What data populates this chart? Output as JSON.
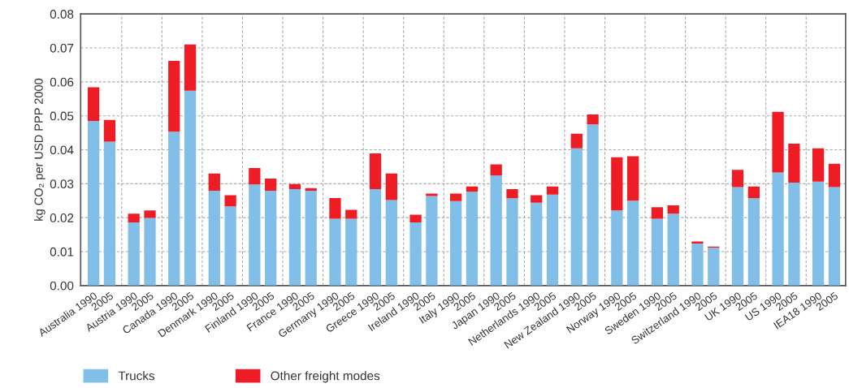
{
  "chart_data": {
    "type": "bar",
    "stacked": true,
    "ylabel": "kg CO₂ per USD PPP 2000",
    "categories": [
      "Australia 1990",
      "2005",
      "Austria 1990",
      "2005",
      "Canada 1990",
      "2005",
      "Denmark 1990",
      "2005",
      "Finland 1990",
      "2005",
      "France 1990",
      "2005",
      "Germany 1990",
      "2005",
      "Greece 1990",
      "2005",
      "Ireland 1990",
      "2005",
      "Italy 1990",
      "2005",
      "Japan 1990",
      "2005",
      "Netherlands 1990",
      "2005",
      "New Zealand 1990",
      "2005",
      "Norway 1990",
      "2005",
      "Sweden 1990",
      "2005",
      "Switzerland 1990",
      "2005",
      "UK 1990",
      "2005",
      "US 1990",
      "2005",
      "IEA18 1990",
      "2005"
    ],
    "series": [
      {
        "name": "Trucks",
        "color": "#82bfe8",
        "values": [
          0.0485,
          0.0424,
          0.0186,
          0.0199,
          0.0453,
          0.0574,
          0.0279,
          0.0233,
          0.0298,
          0.0279,
          0.0284,
          0.0279,
          0.0197,
          0.0197,
          0.0284,
          0.0252,
          0.0186,
          0.0264,
          0.0249,
          0.0276,
          0.0324,
          0.0257,
          0.0244,
          0.0268,
          0.0404,
          0.0475,
          0.0221,
          0.025,
          0.0197,
          0.0212,
          0.0124,
          0.0112,
          0.029,
          0.0257,
          0.0333,
          0.0303,
          0.0306,
          0.029
        ]
      },
      {
        "name": "Other freight modes",
        "color": "#ee1c25",
        "values": [
          0.0099,
          0.0064,
          0.0026,
          0.0022,
          0.0209,
          0.0136,
          0.0051,
          0.0033,
          0.0048,
          0.0036,
          0.0015,
          0.0008,
          0.0061,
          0.0026,
          0.0105,
          0.0078,
          0.0023,
          0.0007,
          0.0022,
          0.0016,
          0.0033,
          0.0027,
          0.0022,
          0.0024,
          0.0043,
          0.0029,
          0.0157,
          0.0131,
          0.0034,
          0.0024,
          0.0006,
          0.0003,
          0.0051,
          0.0035,
          0.0179,
          0.0115,
          0.0098,
          0.0069
        ]
      }
    ],
    "ylim": [
      0,
      0.08
    ],
    "yticks": [
      {
        "value": 0,
        "label": "0.00"
      },
      0.01,
      0.02,
      0.03,
      0.04,
      0.05,
      0.06,
      0.07,
      0.08
    ],
    "grid": true,
    "legend": "bottom"
  }
}
